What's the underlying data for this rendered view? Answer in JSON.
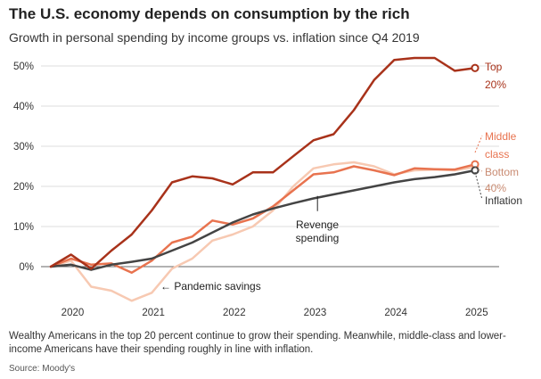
{
  "header": {
    "title": "The U.S. economy depends on consumption by the rich",
    "subtitle": "Growth in personal spending by income groups vs. inflation since Q4 2019"
  },
  "chart_data": {
    "type": "line",
    "xlim": [
      2019.75,
      2025.1
    ],
    "ylim": [
      -10,
      52
    ],
    "yticks": [
      0,
      10,
      20,
      30,
      40,
      50
    ],
    "ytick_labels": [
      "0%",
      "10%",
      "20%",
      "30%",
      "40%",
      "50%"
    ],
    "xticks": [
      2020,
      2021,
      2022,
      2023,
      2024,
      2025
    ],
    "xtick_labels": [
      "2020",
      "2021",
      "2022",
      "2023",
      "2024",
      "2025"
    ],
    "grid": true,
    "series": [
      {
        "name": "Bottom 40%",
        "label_lines": [
          "Bottom",
          "40%"
        ],
        "color": "#f7c9b2",
        "x": [
          2019.75,
          2020.0,
          2020.25,
          2020.5,
          2020.75,
          2021.0,
          2021.25,
          2021.5,
          2021.75,
          2022.0,
          2022.25,
          2022.5,
          2022.75,
          2023.0,
          2023.25,
          2023.5,
          2023.75,
          2024.0,
          2024.25,
          2024.5,
          2024.75,
          2025.0
        ],
        "y": [
          0,
          1.5,
          -5,
          -6,
          -8.5,
          -6.5,
          -0.5,
          2,
          6.5,
          8,
          10,
          14,
          20,
          24.5,
          25.5,
          26,
          25,
          23,
          24,
          24.2,
          24,
          24.8
        ]
      },
      {
        "name": "Middle class",
        "label_lines": [
          "Middle",
          "class"
        ],
        "color": "#e8734f",
        "x": [
          2019.75,
          2020.0,
          2020.25,
          2020.5,
          2020.75,
          2021.0,
          2021.25,
          2021.5,
          2021.75,
          2022.0,
          2022.25,
          2022.5,
          2022.75,
          2023.0,
          2023.25,
          2023.5,
          2023.75,
          2024.0,
          2024.25,
          2024.5,
          2024.75,
          2025.0
        ],
        "y": [
          0,
          2,
          0.5,
          0.8,
          -1.5,
          1.5,
          6,
          7.5,
          11.5,
          10.5,
          12,
          15,
          19,
          23,
          23.5,
          25,
          24,
          22.8,
          24.5,
          24.3,
          24.2,
          25.5
        ]
      },
      {
        "name": "Inflation",
        "label_lines": [
          "Inflation"
        ],
        "color": "#444444",
        "x": [
          2019.75,
          2020.0,
          2020.25,
          2020.5,
          2020.75,
          2021.0,
          2021.25,
          2021.5,
          2021.75,
          2022.0,
          2022.25,
          2022.5,
          2022.75,
          2023.0,
          2023.25,
          2023.5,
          2023.75,
          2024.0,
          2024.25,
          2024.5,
          2024.75,
          2025.0
        ],
        "y": [
          0,
          0.5,
          -0.8,
          0.5,
          1.2,
          2,
          4,
          6,
          8.5,
          11,
          13,
          14.5,
          15.8,
          17,
          18,
          19,
          20,
          21,
          21.8,
          22.3,
          23,
          24
        ]
      },
      {
        "name": "Top 20%",
        "label_lines": [
          "Top",
          "20%"
        ],
        "color": "#a8321a",
        "x": [
          2019.75,
          2020.0,
          2020.25,
          2020.5,
          2020.75,
          2021.0,
          2021.25,
          2021.5,
          2021.75,
          2022.0,
          2022.25,
          2022.5,
          2022.75,
          2023.0,
          2023.25,
          2023.5,
          2023.75,
          2024.0,
          2024.25,
          2024.5,
          2024.75,
          2025.0
        ],
        "y": [
          0,
          3,
          -0.5,
          4,
          8,
          14,
          21,
          22.5,
          22,
          20.5,
          23.5,
          23.5,
          27.5,
          31.5,
          33,
          39,
          46.5,
          51.5,
          52,
          52,
          48.8,
          49.5
        ]
      }
    ],
    "annotations": [
      {
        "text_lines": [
          "Revenge",
          "spending"
        ],
        "x": 2023.05,
        "y": 14.5
      },
      {
        "text_lines": [
          "← Pandemic savings"
        ],
        "x": 2021.1,
        "y": -5
      }
    ]
  },
  "caption": "Wealthy Americans in the top 20 percent continue to grow their spending. Meanwhile, middle-class and lower-income Americans have their spending roughly in line with inflation.",
  "source": "Source: Moody's"
}
